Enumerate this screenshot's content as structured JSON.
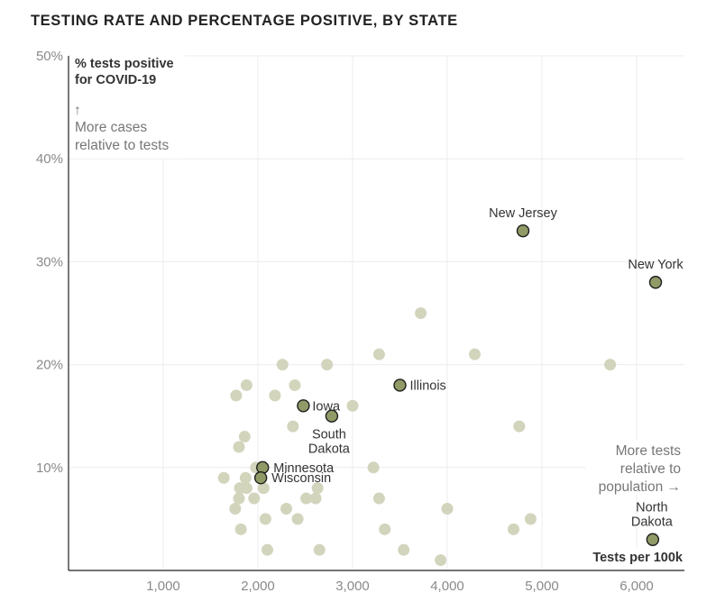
{
  "chart_data": {
    "type": "scatter",
    "title": "TESTING RATE AND PERCENTAGE POSITIVE, BY STATE",
    "ylabel": "% tests positive for COVID-19",
    "xlabel": "Tests per 100k",
    "xlim": [
      0,
      6500
    ],
    "ylim": [
      0,
      50
    ],
    "x_ticks": [
      1000,
      2000,
      3000,
      4000,
      5000,
      6000
    ],
    "x_tick_labels": [
      "1,000",
      "2,000",
      "3,000",
      "4,000",
      "5,000",
      "6,000"
    ],
    "y_ticks": [
      10,
      20,
      30,
      40,
      50
    ],
    "y_tick_labels": [
      "10%",
      "20%",
      "30%",
      "40%",
      "50%"
    ],
    "grid": true,
    "annotations": {
      "y_arrow": "↑",
      "y_note": [
        "More cases",
        "relative to tests"
      ],
      "x_note": [
        "More tests",
        "relative to",
        "population →"
      ]
    },
    "highlight_color": "#8f9a66",
    "background_color": "#d2d4bc",
    "highlighted": [
      {
        "label": "New Jersey",
        "x": 4800,
        "y": 33
      },
      {
        "label": "New York",
        "x": 6200,
        "y": 28
      },
      {
        "label": "Illinois",
        "x": 3500,
        "y": 18
      },
      {
        "label": "Iowa",
        "x": 2480,
        "y": 16
      },
      {
        "label": "South Dakota",
        "x": 2780,
        "y": 15
      },
      {
        "label": "Minnesota",
        "x": 2050,
        "y": 10
      },
      {
        "label": "Wisconsin",
        "x": 2030,
        "y": 9
      },
      {
        "label": "North Dakota",
        "x": 6170,
        "y": 3
      }
    ],
    "others": [
      {
        "x": 3720,
        "y": 25
      },
      {
        "x": 3280,
        "y": 21
      },
      {
        "x": 4290,
        "y": 21
      },
      {
        "x": 5720,
        "y": 20
      },
      {
        "x": 2260,
        "y": 20
      },
      {
        "x": 2730,
        "y": 20
      },
      {
        "x": 1880,
        "y": 18
      },
      {
        "x": 2390,
        "y": 18
      },
      {
        "x": 1770,
        "y": 17
      },
      {
        "x": 2180,
        "y": 17
      },
      {
        "x": 3000,
        "y": 16
      },
      {
        "x": 2370,
        "y": 14
      },
      {
        "x": 4760,
        "y": 14
      },
      {
        "x": 1860,
        "y": 13
      },
      {
        "x": 1800,
        "y": 12
      },
      {
        "x": 1980,
        "y": 10
      },
      {
        "x": 3220,
        "y": 10
      },
      {
        "x": 1640,
        "y": 9
      },
      {
        "x": 1870,
        "y": 9
      },
      {
        "x": 1810,
        "y": 8
      },
      {
        "x": 1880,
        "y": 8
      },
      {
        "x": 2060,
        "y": 8
      },
      {
        "x": 2630,
        "y": 8
      },
      {
        "x": 1800,
        "y": 7
      },
      {
        "x": 1960,
        "y": 7
      },
      {
        "x": 2510,
        "y": 7
      },
      {
        "x": 2610,
        "y": 7
      },
      {
        "x": 3280,
        "y": 7
      },
      {
        "x": 1760,
        "y": 6
      },
      {
        "x": 2300,
        "y": 6
      },
      {
        "x": 4000,
        "y": 6
      },
      {
        "x": 2080,
        "y": 5
      },
      {
        "x": 2420,
        "y": 5
      },
      {
        "x": 4880,
        "y": 5
      },
      {
        "x": 1820,
        "y": 4
      },
      {
        "x": 3340,
        "y": 4
      },
      {
        "x": 4700,
        "y": 4
      },
      {
        "x": 2100,
        "y": 2
      },
      {
        "x": 2650,
        "y": 2
      },
      {
        "x": 3540,
        "y": 2
      },
      {
        "x": 3930,
        "y": 1
      }
    ]
  }
}
